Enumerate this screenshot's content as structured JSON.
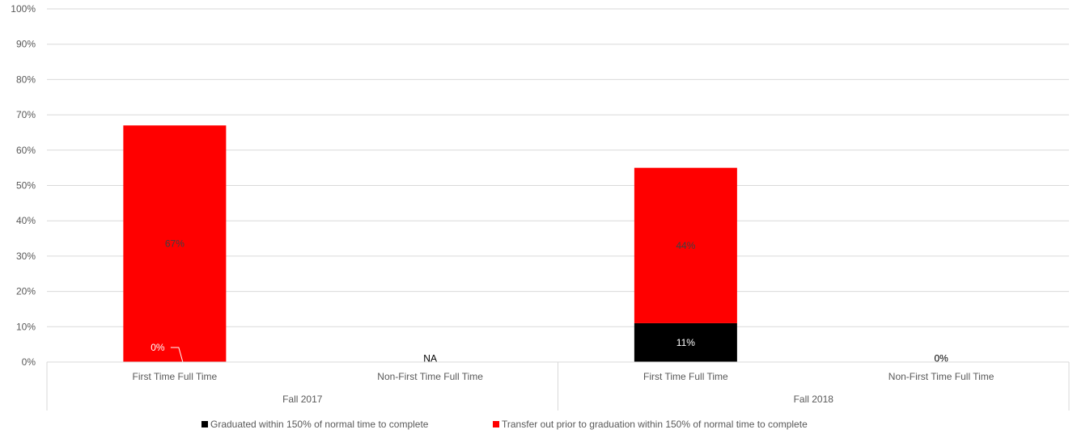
{
  "chart_data": {
    "type": "bar",
    "stacked": true,
    "title": "",
    "xlabel": "",
    "ylabel": "",
    "ylim": [
      0,
      100
    ],
    "ytick_labels": [
      "0%",
      "10%",
      "20%",
      "30%",
      "40%",
      "50%",
      "60%",
      "70%",
      "80%",
      "90%",
      "100%"
    ],
    "categories": [
      {
        "group": "Fall 2017",
        "label": "First Time Full Time"
      },
      {
        "group": "Fall 2017",
        "label": "Non-First Time Full Time"
      },
      {
        "group": "Fall 2018",
        "label": "First Time Full Time"
      },
      {
        "group": "Fall 2018",
        "label": "Non-First Time Full Time"
      }
    ],
    "groups": [
      "Fall 2017",
      "Fall 2018"
    ],
    "series": [
      {
        "name": "Graduated within 150% of normal time to complete",
        "color": "#000000",
        "values": [
          0,
          null,
          11,
          0
        ],
        "labels": [
          "0%",
          "",
          "11%",
          ""
        ]
      },
      {
        "name": "Transfer out prior to graduation within 150% of normal time to complete",
        "color": "#ff0000",
        "values": [
          67,
          null,
          44,
          0
        ],
        "labels": [
          "67%",
          "",
          "44%",
          ""
        ]
      }
    ],
    "category_labels": [
      "",
      "NA",
      "",
      "0%"
    ],
    "grid": true,
    "legend_position": "bottom"
  }
}
